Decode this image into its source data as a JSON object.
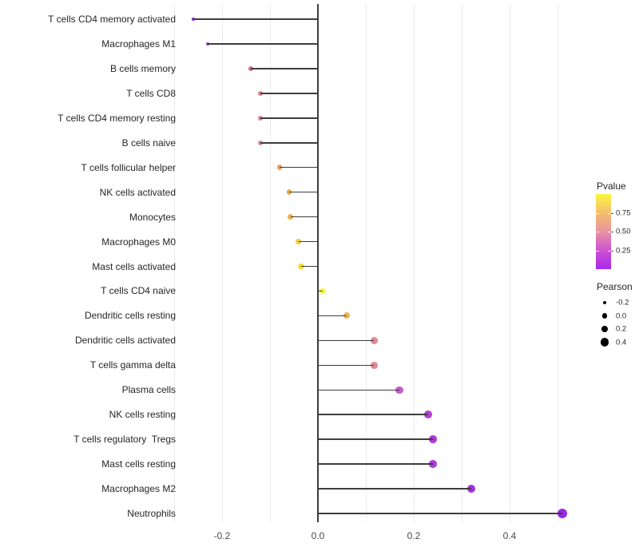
{
  "chart_data": {
    "type": "lollipop",
    "title": "",
    "xlabel": "",
    "ylabel": "",
    "baseline": 0,
    "x_axis": {
      "range": [
        -0.3,
        0.56
      ],
      "ticks": [
        -0.2,
        0.0,
        0.2,
        0.4
      ],
      "tick_labels": [
        "-0.2",
        "0.0",
        "0.2",
        "0.4"
      ],
      "gridlines": [
        -0.3,
        -0.2,
        -0.1,
        0.1,
        0.2,
        0.3,
        0.4,
        0.5
      ]
    },
    "points": [
      {
        "label": "T cells CD4 memory activated",
        "pearson": -0.26,
        "pvalue": 0.04,
        "color": "#9230d8"
      },
      {
        "label": "Macrophages M1",
        "pearson": -0.23,
        "pvalue": 0.06,
        "color": "#a134d6"
      },
      {
        "label": "B cells memory",
        "pearson": -0.14,
        "pvalue": 0.42,
        "color": "#d2718f"
      },
      {
        "label": "T cells CD8",
        "pearson": -0.12,
        "pvalue": 0.47,
        "color": "#df8191"
      },
      {
        "label": "T cells CD4 memory resting",
        "pearson": -0.12,
        "pvalue": 0.47,
        "color": "#df8191"
      },
      {
        "label": "B cells naive",
        "pearson": -0.12,
        "pvalue": 0.48,
        "color": "#e08b93"
      },
      {
        "label": "T cells follicular helper",
        "pearson": -0.08,
        "pvalue": 0.62,
        "color": "#ea9f6f"
      },
      {
        "label": "NK cells activated",
        "pearson": -0.06,
        "pvalue": 0.71,
        "color": "#ecae53"
      },
      {
        "label": "Monocytes",
        "pearson": -0.057,
        "pvalue": 0.73,
        "color": "#edb44c"
      },
      {
        "label": "Macrophages M0",
        "pearson": -0.04,
        "pvalue": 0.83,
        "color": "#f0cb40"
      },
      {
        "label": "Mast cells activated",
        "pearson": -0.035,
        "pvalue": 0.87,
        "color": "#f2dc3c"
      },
      {
        "label": "T cells CD4 naive",
        "pearson": 0.01,
        "pvalue": 0.97,
        "color": "#faf73c"
      },
      {
        "label": "Dendritic cells resting",
        "pearson": 0.06,
        "pvalue": 0.72,
        "color": "#efb458"
      },
      {
        "label": "Dendritic cells activated",
        "pearson": 0.117,
        "pvalue": 0.49,
        "color": "#e08c94"
      },
      {
        "label": "T cells gamma delta",
        "pearson": 0.117,
        "pvalue": 0.49,
        "color": "#df8a93"
      },
      {
        "label": "Plasma cells",
        "pearson": 0.17,
        "pvalue": 0.27,
        "color": "#c55cc5"
      },
      {
        "label": "NK cells resting",
        "pearson": 0.23,
        "pvalue": 0.15,
        "color": "#b83ed8"
      },
      {
        "label": "T cells regulatory  Tregs",
        "pearson": 0.24,
        "pvalue": 0.13,
        "color": "#af35dc"
      },
      {
        "label": "Mast cells resting",
        "pearson": 0.24,
        "pvalue": 0.13,
        "color": "#b238dc"
      },
      {
        "label": "Macrophages M2",
        "pearson": 0.32,
        "pvalue": 0.06,
        "color": "#a52be2"
      },
      {
        "label": "Neutrophils",
        "pearson": 0.51,
        "pvalue": 0.02,
        "color": "#9927e8"
      }
    ]
  },
  "legend": {
    "pvalue": {
      "title": "Pvalue",
      "range": [
        0,
        1
      ],
      "ticks": [
        {
          "value": 0.75,
          "label": "0.75"
        },
        {
          "value": 0.5,
          "label": "0.50"
        },
        {
          "value": 0.25,
          "label": "0.25"
        }
      ],
      "gradient_stops_bottom_to_top": [
        "#a828ec",
        "#cc52d2",
        "#e9939f",
        "#f4be6e",
        "#fbf53f"
      ]
    },
    "pearson": {
      "title": "Pearson",
      "dot_color": "#000000",
      "entries": [
        {
          "value": -0.2,
          "label": "-0.2"
        },
        {
          "value": 0.0,
          "label": "0.0"
        },
        {
          "value": 0.2,
          "label": "0.2"
        },
        {
          "value": 0.4,
          "label": "0.4"
        }
      ]
    }
  },
  "colors": {
    "stick": "#3d3d3d",
    "baseline": "#3d3d3d",
    "grid": "#ebebeb",
    "axis_text": "#4d4d4d",
    "label_text": "#262626"
  }
}
